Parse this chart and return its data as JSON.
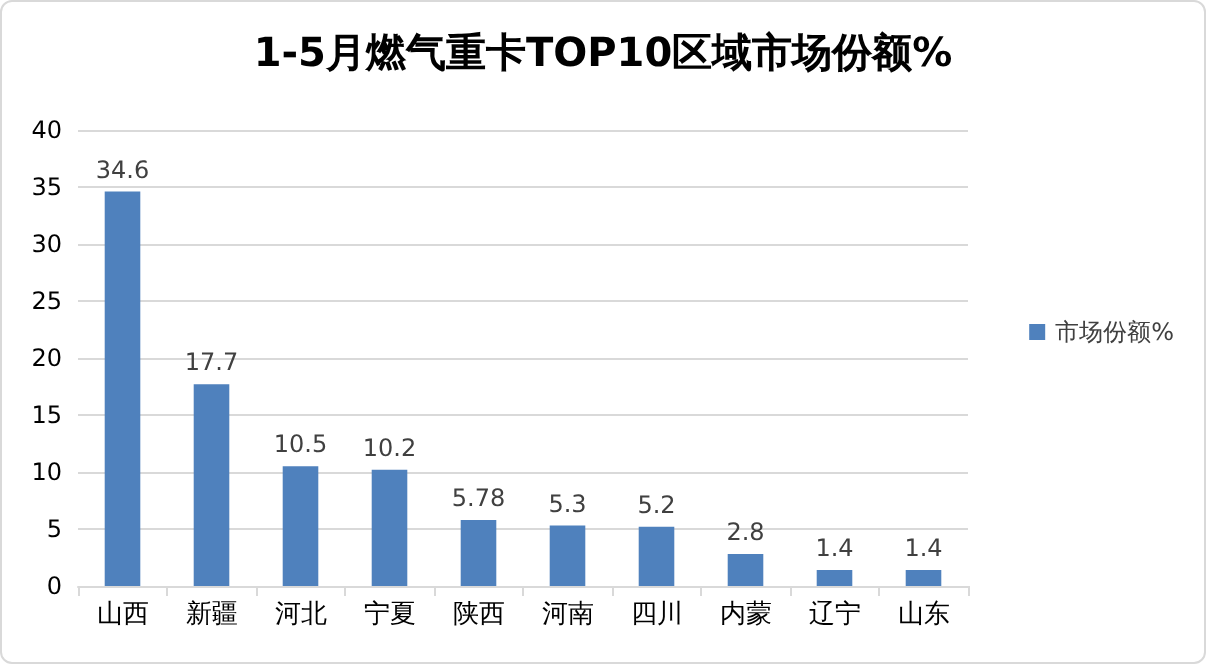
{
  "chart_data": {
    "type": "bar",
    "title": "1-5月燃气重卡TOP10区域市场份额%",
    "categories": [
      "山西",
      "新疆",
      "河北",
      "宁夏",
      "陕西",
      "河南",
      "四川",
      "内蒙",
      "辽宁",
      "山东"
    ],
    "series": [
      {
        "name": "市场份额%",
        "color": "#4f81bd",
        "values": [
          34.6,
          17.7,
          10.5,
          10.2,
          5.78,
          5.3,
          5.2,
          2.8,
          1.4,
          1.4
        ]
      }
    ],
    "ylim": [
      0,
      40
    ],
    "yticks": [
      0,
      5,
      10,
      15,
      20,
      25,
      30,
      35,
      40
    ],
    "grid": "y",
    "legend": "right",
    "data_labels": true
  }
}
